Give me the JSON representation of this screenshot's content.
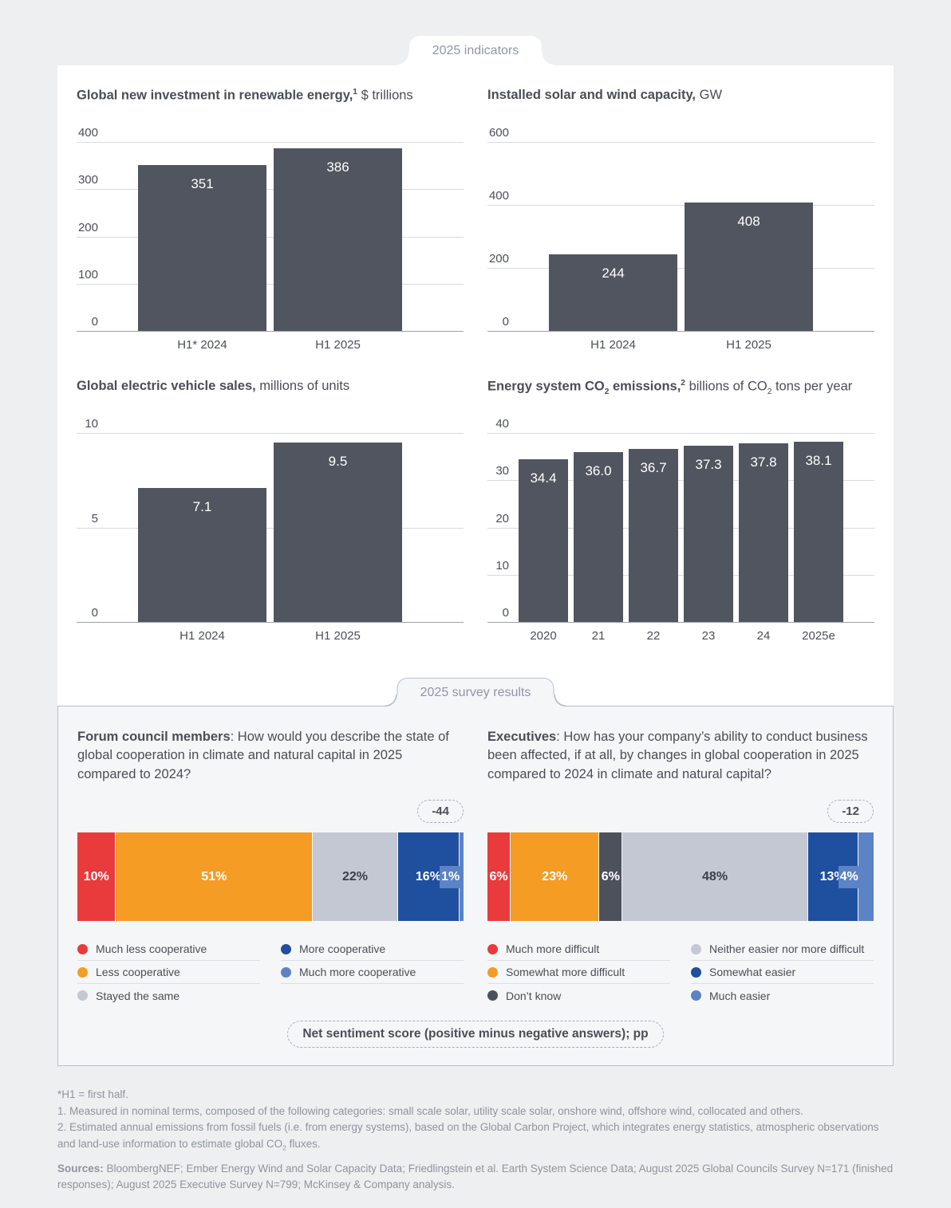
{
  "tabs": {
    "indicators": "2025 indicators",
    "survey": "2025 survey results"
  },
  "palette": {
    "bar": "#51555f",
    "red": "#e93a3c",
    "orange": "#f49c23",
    "light_gray": "#c3c8d3",
    "dark_gray": "#4d515c",
    "dark_blue": "#1f4f9f",
    "medium_blue": "#5c83c5"
  },
  "chart_data": [
    {
      "type": "bar",
      "title_parts": [
        {
          "t": "Global new investment in renewable energy,",
          "b": 1
        },
        {
          "t": "1",
          "b": 1,
          "sup": 1
        },
        {
          "t": " $ trillions"
        }
      ],
      "categories": [
        "H1* 2024",
        "H1 2025"
      ],
      "values": [
        351,
        386
      ],
      "value_labels": [
        "351",
        "386"
      ],
      "ylim": [
        0,
        400
      ],
      "yticks": [
        400,
        300,
        200,
        100,
        0
      ]
    },
    {
      "type": "bar",
      "title_parts": [
        {
          "t": "Installed solar and wind capacity,",
          "b": 1
        },
        {
          "t": " GW"
        }
      ],
      "categories": [
        "H1 2024",
        "H1 2025"
      ],
      "values": [
        244,
        408
      ],
      "value_labels": [
        "244",
        "408"
      ],
      "ylim": [
        0,
        600
      ],
      "yticks": [
        600,
        400,
        200,
        0
      ]
    },
    {
      "type": "bar",
      "title_parts": [
        {
          "t": "Global electric vehicle sales,",
          "b": 1
        },
        {
          "t": " millions of units"
        }
      ],
      "categories": [
        "H1 2024",
        "H1 2025"
      ],
      "values": [
        7.1,
        9.5
      ],
      "value_labels": [
        "7.1",
        "9.5"
      ],
      "ylim": [
        0,
        10
      ],
      "yticks": [
        10,
        5,
        0
      ]
    },
    {
      "type": "bar",
      "title_parts": [
        {
          "t": "Energy system CO",
          "b": 1
        },
        {
          "t": "2",
          "b": 1,
          "sub": 1
        },
        {
          "t": " emissions,",
          "b": 1
        },
        {
          "t": "2",
          "b": 1,
          "sup": 1
        },
        {
          "t": " billions of CO"
        },
        {
          "t": "2",
          "sub": 1
        },
        {
          "t": " tons per year"
        }
      ],
      "categories": [
        "2020",
        "21",
        "22",
        "23",
        "24",
        "2025e"
      ],
      "values": [
        34.4,
        36.0,
        36.7,
        37.3,
        37.8,
        38.1
      ],
      "value_labels": [
        "34.4",
        "36.0",
        "36.7",
        "37.3",
        "37.8",
        "38.1"
      ],
      "ylim": [
        0,
        40
      ],
      "yticks": [
        40,
        30,
        20,
        10,
        0
      ]
    },
    {
      "type": "stacked_bar",
      "audience": "Forum council members",
      "question": ": How would you describe the state of global cooperation in climate and natural capital in 2025 compared to 2024?",
      "net_score": "-44",
      "segments": [
        {
          "pct": 10,
          "color": "red",
          "label": "10%"
        },
        {
          "pct": 51,
          "color": "orange",
          "label": "51%"
        },
        {
          "pct": 22,
          "color": "light_gray",
          "label": "22%",
          "dark_text": true
        },
        {
          "pct": 16,
          "color": "dark_blue",
          "label": "16%"
        },
        {
          "pct": 1,
          "color": "medium_blue",
          "label": "1%",
          "small": true
        }
      ],
      "legend_columns": [
        [
          {
            "label": "Much less cooperative",
            "color": "red"
          },
          {
            "label": "Less cooperative",
            "color": "orange"
          },
          {
            "label": "Stayed the same",
            "color": "light_gray"
          }
        ],
        [
          {
            "label": "More cooperative",
            "color": "dark_blue"
          },
          {
            "label": "Much more cooperative",
            "color": "medium_blue"
          }
        ]
      ]
    },
    {
      "type": "stacked_bar",
      "audience": "Executives",
      "question": ": How has your company’s ability to conduct business been affected, if at all, by changes in global cooperation in 2025 compared to 2024 in climate and natural capital?",
      "net_score": "-12",
      "segments": [
        {
          "pct": 6,
          "color": "red",
          "label": "6%"
        },
        {
          "pct": 23,
          "color": "orange",
          "label": "23%"
        },
        {
          "pct": 6,
          "color": "dark_gray",
          "label": "6%"
        },
        {
          "pct": 48,
          "color": "light_gray",
          "label": "48%",
          "dark_text": true
        },
        {
          "pct": 13,
          "color": "dark_blue",
          "label": "13%"
        },
        {
          "pct": 4,
          "color": "medium_blue",
          "label": "4%",
          "small": true
        }
      ],
      "legend_columns": [
        [
          {
            "label": "Much more difficult",
            "color": "red"
          },
          {
            "label": "Somewhat more difficult",
            "color": "orange"
          },
          {
            "label": "Don’t know",
            "color": "dark_gray"
          }
        ],
        [
          {
            "label": "Neither easier nor more difficult",
            "color": "light_gray"
          },
          {
            "label": "Somewhat easier",
            "color": "dark_blue"
          },
          {
            "label": "Much easier",
            "color": "medium_blue"
          }
        ]
      ]
    }
  ],
  "survey": {
    "net_label": "Net sentiment score (positive minus negative answers); pp"
  },
  "footnotes": {
    "h1": "*H1 = first half.",
    "f1": "1. Measured in nominal terms, composed of the following categories: small scale solar, utility scale solar, onshore wind, offshore wind, collocated and others.",
    "f2_pre": "2. Estimated annual emissions from fossil fuels (i.e. from energy systems), based on the Global Carbon Project, which integrates energy statistics, atmospheric observations and land-use information to estimate global CO",
    "f2_sub": "2",
    "f2_post": " fluxes."
  },
  "sources": {
    "label": "Sources:",
    "text": " BloombergNEF; Ember Energy Wind and Solar Capacity Data; Friedlingstein et al. Earth System Science Data; August 2025 Global Councils Survey N=171 (finished responses); August 2025 Executive Survey N=799; McKinsey & Company analysis."
  }
}
